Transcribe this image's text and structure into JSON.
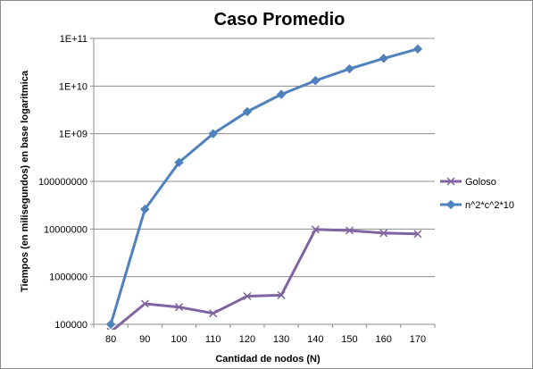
{
  "chart_data": {
    "type": "line",
    "title": "Caso Promedio",
    "xlabel": "Cantidad  de nodos (N)",
    "ylabel": "Tiempos  (en milisegundos)  en base logaritmica",
    "yscale": "log",
    "ylim": [
      100000,
      100000000000
    ],
    "grid": true,
    "legend_position": "right",
    "categories": [
      "80",
      "90",
      "100",
      "110",
      "120",
      "130",
      "140",
      "150",
      "160",
      "170"
    ],
    "y_tick_labels": [
      "100000",
      "1000000",
      "10000000",
      "100000000",
      "1E+09",
      "1E+10",
      "1E+11"
    ],
    "series": [
      {
        "name": "Goloso",
        "color": "#8064a2",
        "marker": "x",
        "values": [
          70000,
          270000,
          230000,
          170000,
          390000,
          410000,
          9800000,
          9300000,
          8200000,
          7900000
        ]
      },
      {
        "name": "n^2*c^2*10",
        "color": "#4f81bd",
        "marker": "diamond",
        "values": [
          100000,
          26000000,
          250000000,
          1000000000,
          2900000000,
          6700000000,
          13000000000,
          23000000000,
          38000000000,
          60000000000
        ]
      }
    ]
  }
}
